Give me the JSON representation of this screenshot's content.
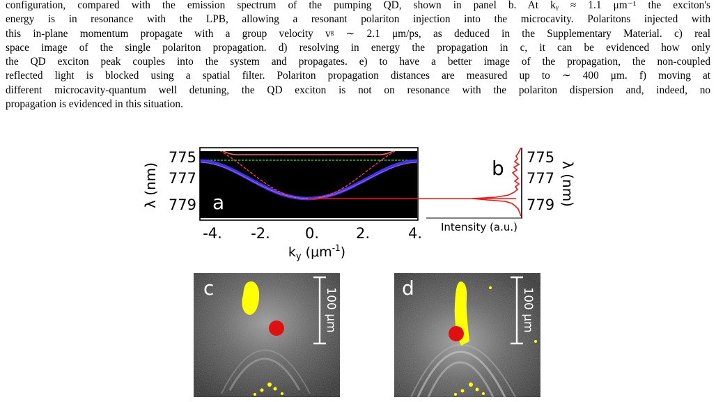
{
  "caption": {
    "lines": [
      "configuration, compared with the emission spectrum of the pumping QD, shown in panel b. At kᵧ ≈ 1.1 μm⁻¹ the exciton's",
      "energy is in resonance with the LPB, allowing a resonant polariton injection into the microcavity. Polaritons injected with",
      "this in-plane momentum propagate with a group velocity vᵍ ∼ 2.1 μm/ps, as deduced in the Supplementary Material. c) real",
      "space image of the single polariton propagation. d) resolving in energy the propagation in c, it can be evidenced how only",
      "the QD exciton peak couples into the system and propagates. e) to have a better image of the propagation, the non-coupled",
      "reflected light is blocked using a spatial filter. Polariton propagation distances are measured up to ∼ 400 μm. f) moving at",
      "different microcavity-quantum well detuning, the QD exciton is not on resonance with the polariton dispersion and, indeed, no",
      "propagation is evidenced in this situation."
    ]
  },
  "figure": {
    "panel_a": {
      "label": "a",
      "y_ticks": [
        "775",
        "777",
        "779"
      ],
      "y_label": "λ (nm)",
      "x_ticks": [
        "-4.",
        "-2.",
        "0.",
        "2.",
        "4."
      ],
      "x_label_main": "k",
      "x_label_sub": "y",
      "x_label_unit": " (μm",
      "x_label_exp": "-1",
      "x_label_close": ")"
    },
    "panel_b": {
      "label": "b",
      "y_ticks": [
        "775",
        "777",
        "779"
      ],
      "y_label": "λ (nm)",
      "x_label": "Intensity (a.u.)"
    },
    "panel_c": {
      "label": "c",
      "scale_bar": "100 μm"
    },
    "panel_d": {
      "label": "d",
      "scale_bar": "100 μm"
    }
  },
  "colors": {
    "dispersion_blue": "#3a3aff",
    "dispersion_red": "#ff3b3b",
    "flat_green": "#00e000",
    "spectrum_red": "#ff1010",
    "qd_yellow": "#ffff00",
    "spot_red": "#e01010"
  }
}
